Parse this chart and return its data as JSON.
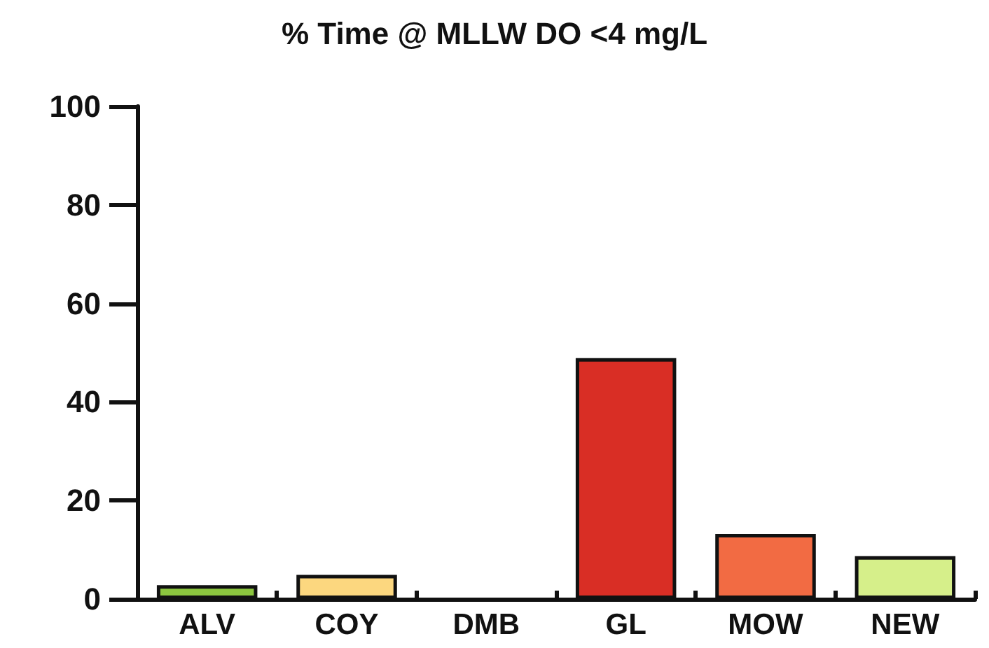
{
  "chart_data": {
    "type": "bar",
    "title": "% Time @ MLLW DO <4 mg/L",
    "categories": [
      "ALV",
      "COY",
      "DMB",
      "GL",
      "MOW",
      "NEW"
    ],
    "values": [
      2.8,
      4.9,
      0,
      48.9,
      13.2,
      8.7
    ],
    "colors": [
      "#8cc63f",
      "#fcd77f",
      "#bbbbbb",
      "#d92e25",
      "#f26b43",
      "#d6ef8a"
    ],
    "ylim": [
      0,
      100
    ],
    "yticks": [
      0,
      20,
      40,
      60,
      80,
      100
    ],
    "grid": false
  }
}
